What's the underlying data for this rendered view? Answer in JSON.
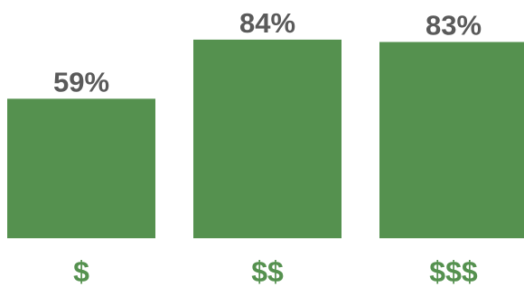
{
  "chart_data": {
    "type": "bar",
    "categories": [
      "$",
      "$$",
      "$$$"
    ],
    "values": [
      59,
      84,
      83
    ],
    "value_labels": [
      "59%",
      "84%",
      "83%"
    ],
    "ylim": [
      0,
      100
    ],
    "grid": false,
    "legend": "none",
    "colors": {
      "bar": "#55914f",
      "value_label": "#5a5a5a",
      "category_label": "#55914f"
    }
  }
}
